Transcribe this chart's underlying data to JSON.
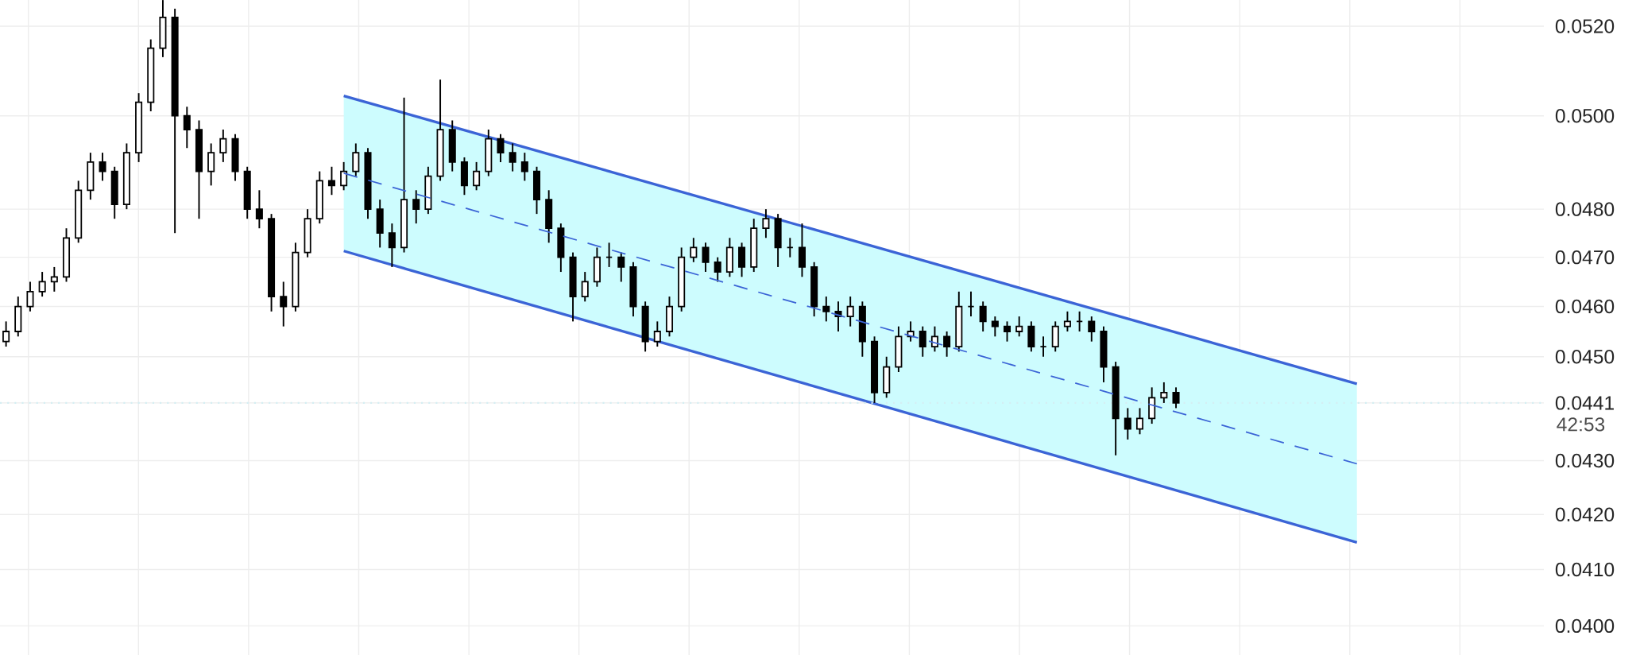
{
  "chart_data": {
    "type": "candlestick",
    "color": "#000000",
    "categories": [
      null,
      null,
      null,
      null,
      null,
      null,
      null,
      null,
      null,
      null,
      null,
      null,
      null,
      null,
      null,
      null,
      null,
      null,
      null,
      null,
      null,
      null,
      null,
      null,
      null,
      null,
      null,
      null,
      null,
      null,
      null,
      null,
      null,
      null,
      null,
      null,
      null,
      null,
      null,
      null,
      null,
      null,
      null,
      null,
      null,
      null,
      null,
      null,
      null,
      null,
      null,
      null,
      null,
      null,
      null,
      null,
      null,
      null,
      null,
      null,
      null,
      null,
      null,
      null,
      null,
      null,
      null,
      null,
      null,
      null,
      null,
      null,
      null,
      null,
      null,
      null,
      null,
      null,
      null,
      null,
      null,
      null,
      null,
      null,
      null,
      null,
      null,
      null,
      null,
      null,
      null,
      null,
      null,
      null,
      null,
      null,
      null,
      null,
      null,
      null,
      null,
      null,
      null,
      null,
      null,
      null,
      null,
      null,
      null,
      null,
      null,
      null,
      null,
      null,
      null,
      null,
      null,
      null,
      null,
      null,
      null,
      null,
      null,
      null,
      null,
      null,
      null,
      null
    ],
    "ohlc": [
      [
        0.0453,
        0.0457,
        0.0452,
        0.0455
      ],
      [
        0.0455,
        0.0462,
        0.0454,
        0.046
      ],
      [
        0.046,
        0.0465,
        0.0459,
        0.0463
      ],
      [
        0.0463,
        0.0467,
        0.0462,
        0.0465
      ],
      [
        0.0465,
        0.0468,
        0.0463,
        0.0466
      ],
      [
        0.0466,
        0.0476,
        0.0465,
        0.0474
      ],
      [
        0.0474,
        0.0486,
        0.0473,
        0.0484
      ],
      [
        0.0484,
        0.0492,
        0.0482,
        0.049
      ],
      [
        0.049,
        0.0492,
        0.0486,
        0.0488
      ],
      [
        0.0488,
        0.0489,
        0.0478,
        0.0481
      ],
      [
        0.0481,
        0.0494,
        0.048,
        0.0492
      ],
      [
        0.0492,
        0.0505,
        0.049,
        0.0503
      ],
      [
        0.0503,
        0.0517,
        0.0501,
        0.0515
      ],
      [
        0.0515,
        0.0526,
        0.0513,
        0.0522
      ],
      [
        0.0522,
        0.0524,
        0.0475,
        0.05
      ],
      [
        0.05,
        0.0502,
        0.0493,
        0.0497
      ],
      [
        0.0497,
        0.0499,
        0.0478,
        0.0488
      ],
      [
        0.0488,
        0.0494,
        0.0485,
        0.0492
      ],
      [
        0.0492,
        0.0497,
        0.049,
        0.0495
      ],
      [
        0.0495,
        0.0496,
        0.0486,
        0.0488
      ],
      [
        0.0488,
        0.0489,
        0.0478,
        0.048
      ],
      [
        0.048,
        0.0484,
        0.0476,
        0.0478
      ],
      [
        0.0478,
        0.0479,
        0.0459,
        0.0462
      ],
      [
        0.0462,
        0.0465,
        0.0456,
        0.046
      ],
      [
        0.046,
        0.0473,
        0.0459,
        0.0471
      ],
      [
        0.0471,
        0.048,
        0.047,
        0.0478
      ],
      [
        0.0478,
        0.0488,
        0.0477,
        0.0486
      ],
      [
        0.0486,
        0.0489,
        0.0483,
        0.0485
      ],
      [
        0.0485,
        0.049,
        0.0484,
        0.0488
      ],
      [
        0.0488,
        0.0494,
        0.0487,
        0.0492
      ],
      [
        0.0492,
        0.0493,
        0.0478,
        0.048
      ],
      [
        0.048,
        0.0482,
        0.0472,
        0.0475
      ],
      [
        0.0475,
        0.0477,
        0.0468,
        0.0472
      ],
      [
        0.0472,
        0.0504,
        0.0471,
        0.0482
      ],
      [
        0.0482,
        0.0484,
        0.0477,
        0.048
      ],
      [
        0.048,
        0.0489,
        0.0479,
        0.0487
      ],
      [
        0.0487,
        0.0508,
        0.0486,
        0.0497
      ],
      [
        0.0497,
        0.0499,
        0.0488,
        0.049
      ],
      [
        0.049,
        0.0491,
        0.0483,
        0.0485
      ],
      [
        0.0485,
        0.049,
        0.0484,
        0.0488
      ],
      [
        0.0488,
        0.0497,
        0.0487,
        0.0495
      ],
      [
        0.0495,
        0.0496,
        0.049,
        0.0492
      ],
      [
        0.0492,
        0.0494,
        0.0488,
        0.049
      ],
      [
        0.049,
        0.0492,
        0.0486,
        0.0488
      ],
      [
        0.0488,
        0.0489,
        0.0479,
        0.0482
      ],
      [
        0.0482,
        0.0484,
        0.0473,
        0.0476
      ],
      [
        0.0476,
        0.0477,
        0.0467,
        0.047
      ],
      [
        0.047,
        0.0471,
        0.0457,
        0.0462
      ],
      [
        0.0462,
        0.0467,
        0.0461,
        0.0465
      ],
      [
        0.0465,
        0.0472,
        0.0464,
        0.047
      ],
      [
        0.047,
        0.0473,
        0.0468,
        0.047
      ],
      [
        0.047,
        0.0471,
        0.0465,
        0.0468
      ],
      [
        0.0468,
        0.0469,
        0.0458,
        0.046
      ],
      [
        0.046,
        0.0461,
        0.0451,
        0.0453
      ],
      [
        0.0453,
        0.0457,
        0.0452,
        0.0455
      ],
      [
        0.0455,
        0.0462,
        0.0454,
        0.046
      ],
      [
        0.046,
        0.0472,
        0.0459,
        0.047
      ],
      [
        0.047,
        0.0474,
        0.0469,
        0.0472
      ],
      [
        0.0472,
        0.0473,
        0.0467,
        0.0469
      ],
      [
        0.0469,
        0.047,
        0.0465,
        0.0467
      ],
      [
        0.0467,
        0.0474,
        0.0466,
        0.0472
      ],
      [
        0.0472,
        0.0473,
        0.0466,
        0.0468
      ],
      [
        0.0468,
        0.0478,
        0.0467,
        0.0476
      ],
      [
        0.0476,
        0.048,
        0.0474,
        0.0478
      ],
      [
        0.0478,
        0.0479,
        0.0468,
        0.0472
      ],
      [
        0.0472,
        0.0474,
        0.047,
        0.0472
      ],
      [
        0.0472,
        0.0477,
        0.0466,
        0.0468
      ],
      [
        0.0468,
        0.0469,
        0.0458,
        0.046
      ],
      [
        0.046,
        0.0462,
        0.0457,
        0.0459
      ],
      [
        0.0459,
        0.0461,
        0.0455,
        0.0458
      ],
      [
        0.0458,
        0.0462,
        0.0456,
        0.046
      ],
      [
        0.046,
        0.0461,
        0.045,
        0.0453
      ],
      [
        0.0453,
        0.0454,
        0.0441,
        0.0443
      ],
      [
        0.0443,
        0.045,
        0.0442,
        0.0448
      ],
      [
        0.0448,
        0.0456,
        0.0447,
        0.0454
      ],
      [
        0.0454,
        0.0457,
        0.0453,
        0.0455
      ],
      [
        0.0455,
        0.0456,
        0.045,
        0.0452
      ],
      [
        0.0452,
        0.0456,
        0.0451,
        0.0454
      ],
      [
        0.0454,
        0.0455,
        0.045,
        0.0452
      ],
      [
        0.0452,
        0.0463,
        0.0451,
        0.046
      ],
      [
        0.046,
        0.0463,
        0.0458,
        0.046
      ],
      [
        0.046,
        0.0461,
        0.0455,
        0.0457
      ],
      [
        0.0457,
        0.0458,
        0.0454,
        0.0456
      ],
      [
        0.0456,
        0.0457,
        0.0453,
        0.0455
      ],
      [
        0.0455,
        0.0458,
        0.0454,
        0.0456
      ],
      [
        0.0456,
        0.0457,
        0.0451,
        0.0452
      ],
      [
        0.0452,
        0.0454,
        0.045,
        0.0452
      ],
      [
        0.0452,
        0.0457,
        0.0451,
        0.0456
      ],
      [
        0.0456,
        0.0459,
        0.0455,
        0.0457
      ],
      [
        0.0457,
        0.0459,
        0.0455,
        0.0457
      ],
      [
        0.0457,
        0.0458,
        0.0453,
        0.0455
      ],
      [
        0.0455,
        0.0456,
        0.0445,
        0.0448
      ],
      [
        0.0448,
        0.0449,
        0.0431,
        0.0438
      ],
      [
        0.0438,
        0.044,
        0.0434,
        0.0436
      ],
      [
        0.0436,
        0.044,
        0.0435,
        0.0438
      ],
      [
        0.0438,
        0.0444,
        0.0437,
        0.0442
      ],
      [
        0.0442,
        0.0445,
        0.0441,
        0.0443
      ],
      [
        0.0443,
        0.0444,
        0.044,
        0.0441
      ],
      null,
      null,
      null,
      null,
      null,
      null,
      null,
      null,
      null,
      null,
      null,
      null,
      null,
      null,
      null,
      null,
      null,
      null,
      null,
      null,
      null,
      null,
      null,
      null,
      null,
      null,
      null,
      null,
      null,
      null
    ],
    "series": [
      {
        "type": "line",
        "color": "#3b64d6",
        "line_style": "dashed",
        "values": [
          null,
          null,
          null,
          null,
          null,
          null,
          null,
          null,
          null,
          null,
          null,
          null,
          null,
          null,
          null,
          null,
          null,
          null,
          null,
          null,
          null,
          null,
          null,
          null,
          null,
          null,
          null,
          null,
          0.04876,
          null,
          null,
          null,
          null,
          null,
          null,
          null,
          null,
          null,
          null,
          null,
          null,
          null,
          null,
          null,
          null,
          null,
          null,
          null,
          null,
          null,
          null,
          null,
          null,
          null,
          null,
          null,
          null,
          null,
          null,
          null,
          null,
          null,
          null,
          null,
          null,
          null,
          null,
          null,
          null,
          null,
          null,
          null,
          null,
          null,
          null,
          null,
          null,
          null,
          null,
          null,
          null,
          null,
          null,
          null,
          null,
          null,
          null,
          null,
          null,
          null,
          null,
          null,
          null,
          null,
          null,
          null,
          null,
          null,
          null,
          null,
          null,
          null,
          null,
          null,
          null,
          null,
          null,
          null,
          null,
          null,
          null,
          null,
          0.04294,
          null,
          null,
          null,
          null,
          null,
          null,
          null,
          null,
          null,
          null,
          null,
          null,
          null,
          null,
          null
        ],
        "lower": [
          null,
          null,
          null,
          null,
          null,
          null,
          null,
          null,
          null,
          null,
          null,
          null,
          null,
          null,
          null,
          null,
          null,
          null,
          null,
          null,
          null,
          null,
          null,
          null,
          null,
          null,
          null,
          null,
          0.04713,
          null,
          null,
          null,
          null,
          null,
          null,
          null,
          null,
          null,
          null,
          null,
          null,
          null,
          null,
          null,
          null,
          null,
          null,
          null,
          null,
          null,
          null,
          null,
          null,
          null,
          null,
          null,
          null,
          null,
          null,
          null,
          null,
          null,
          null,
          null,
          null,
          null,
          null,
          null,
          null,
          null,
          null,
          null,
          null,
          null,
          null,
          null,
          null,
          null,
          null,
          null,
          null,
          null,
          null,
          null,
          null,
          null,
          null,
          null,
          null,
          null,
          null,
          null,
          null,
          null,
          null,
          null,
          null,
          null,
          null,
          null,
          null,
          null,
          null,
          null,
          null,
          null,
          null,
          null,
          null,
          null,
          null,
          null,
          0.04149,
          null,
          null,
          null,
          null,
          null,
          null,
          null,
          null,
          null,
          null,
          null,
          null,
          null,
          null,
          null
        ],
        "upper": [
          null,
          null,
          null,
          null,
          null,
          null,
          null,
          null,
          null,
          null,
          null,
          null,
          null,
          null,
          null,
          null,
          null,
          null,
          null,
          null,
          null,
          null,
          null,
          null,
          null,
          null,
          null,
          null,
          0.05044,
          null,
          null,
          null,
          null,
          null,
          null,
          null,
          null,
          null,
          null,
          null,
          null,
          null,
          null,
          null,
          null,
          null,
          null,
          null,
          null,
          null,
          null,
          null,
          null,
          null,
          null,
          null,
          null,
          null,
          null,
          null,
          null,
          null,
          null,
          null,
          null,
          null,
          null,
          null,
          null,
          null,
          null,
          null,
          null,
          null,
          null,
          null,
          null,
          null,
          null,
          null,
          null,
          null,
          null,
          null,
          null,
          null,
          null,
          null,
          null,
          null,
          null,
          null,
          null,
          null,
          null,
          null,
          null,
          null,
          null,
          null,
          null,
          null,
          null,
          null,
          null,
          null,
          null,
          null,
          null,
          null,
          null,
          null,
          0.04447,
          null,
          null,
          null,
          null,
          null,
          null,
          null,
          null,
          null,
          null,
          null,
          null,
          null,
          null,
          null
        ]
      },
      {
        "type": "line",
        "color": "#3b64d6",
        "line_style": "solid",
        "values": [
          null,
          null,
          null,
          null,
          null,
          null,
          null,
          null,
          null,
          null,
          null,
          null,
          null,
          null,
          null,
          null,
          null,
          null,
          null,
          null,
          null,
          null,
          null,
          null,
          null,
          null,
          null,
          null,
          0.05044,
          null,
          null,
          null,
          null,
          null,
          null,
          null,
          null,
          null,
          null,
          null,
          null,
          null,
          null,
          null,
          null,
          null,
          null,
          null,
          null,
          null,
          null,
          null,
          null,
          null,
          null,
          null,
          null,
          null,
          null,
          null,
          null,
          null,
          null,
          null,
          null,
          null,
          null,
          null,
          null,
          null,
          null,
          null,
          null,
          null,
          null,
          null,
          null,
          null,
          null,
          null,
          null,
          null,
          null,
          null,
          null,
          null,
          null,
          null,
          null,
          null,
          null,
          null,
          null,
          null,
          null,
          null,
          null,
          null,
          null,
          null,
          null,
          null,
          null,
          null,
          null,
          null,
          null,
          null,
          null,
          null,
          null,
          null,
          0.04447,
          null,
          null,
          null,
          null,
          null,
          null,
          null,
          null,
          null,
          null,
          null,
          null,
          null,
          null,
          null
        ]
      },
      {
        "type": "line",
        "color": "#3b64d6",
        "line_style": "solid",
        "values": [
          null,
          null,
          null,
          null,
          null,
          null,
          null,
          null,
          null,
          null,
          null,
          null,
          null,
          null,
          null,
          null,
          null,
          null,
          null,
          null,
          null,
          null,
          null,
          null,
          null,
          null,
          null,
          null,
          0.04713,
          null,
          null,
          null,
          null,
          null,
          null,
          null,
          null,
          null,
          null,
          null,
          null,
          null,
          null,
          null,
          null,
          null,
          null,
          null,
          null,
          null,
          null,
          null,
          null,
          null,
          null,
          null,
          null,
          null,
          null,
          null,
          null,
          null,
          null,
          null,
          null,
          null,
          null,
          null,
          null,
          null,
          null,
          null,
          null,
          null,
          null,
          null,
          null,
          null,
          null,
          null,
          null,
          null,
          null,
          null,
          null,
          null,
          null,
          null,
          null,
          null,
          null,
          null,
          null,
          null,
          null,
          null,
          null,
          null,
          null,
          null,
          null,
          null,
          null,
          null,
          null,
          null,
          null,
          null,
          null,
          null,
          null,
          null,
          0.04149,
          null,
          null,
          null,
          null,
          null,
          null,
          null,
          null,
          null,
          null,
          null,
          null,
          null,
          null,
          null
        ]
      }
    ],
    "ylim": [
      0.0395,
      0.0526
    ],
    "log": "y",
    "grid": true,
    "yticks": [
      {
        "value": 0.04,
        "label": "0.0400"
      },
      {
        "value": 0.041,
        "label": "0.0410"
      },
      {
        "value": 0.042,
        "label": "0.0420"
      },
      {
        "value": 0.043,
        "label": "0.0430"
      },
      {
        "value": 0.0441,
        "label": "0.0441"
      },
      {
        "value": 0.045,
        "label": "0.0450"
      },
      {
        "value": 0.046,
        "label": "0.0460"
      },
      {
        "value": 0.047,
        "label": "0.0470"
      },
      {
        "value": 0.048,
        "label": "0.0480"
      },
      {
        "value": 0.05,
        "label": "0.0500"
      },
      {
        "value": 0.052,
        "label": "0.0520"
      }
    ],
    "ref_lines": [
      {
        "axis": "y",
        "value": 0.0441,
        "color": "#d4eef3",
        "line_style": "dotted"
      }
    ],
    "annotations": [
      "42:53"
    ]
  }
}
